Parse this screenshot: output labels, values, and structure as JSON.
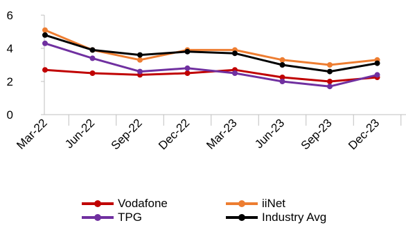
{
  "chart_data": {
    "type": "line",
    "title": "",
    "xlabel": "",
    "ylabel": "",
    "categories": [
      "Mar-22",
      "Jun-22",
      "Sep-22",
      "Dec-22",
      "Mar-23",
      "Jun-23",
      "Sep-23",
      "Dec-23"
    ],
    "ylim": [
      0,
      6
    ],
    "yticks": [
      "0",
      "2",
      "4",
      "6"
    ],
    "grid": false,
    "legend_position": "bottom",
    "series": [
      {
        "name": "Vodafone",
        "color": "#C00000",
        "values": [
          2.7,
          2.5,
          2.4,
          2.5,
          2.7,
          2.25,
          2.0,
          2.25
        ]
      },
      {
        "name": "iiNet",
        "color": "#ED7D31",
        "values": [
          5.1,
          3.9,
          3.3,
          3.9,
          3.9,
          3.3,
          3.0,
          3.3
        ]
      },
      {
        "name": "TPG",
        "color": "#7030A0",
        "values": [
          4.3,
          3.4,
          2.6,
          2.8,
          2.5,
          2.0,
          1.7,
          2.4
        ]
      },
      {
        "name": "Industry Avg",
        "color": "#000000",
        "values": [
          4.8,
          3.9,
          3.6,
          3.8,
          3.7,
          3.0,
          2.6,
          3.1
        ]
      }
    ]
  }
}
